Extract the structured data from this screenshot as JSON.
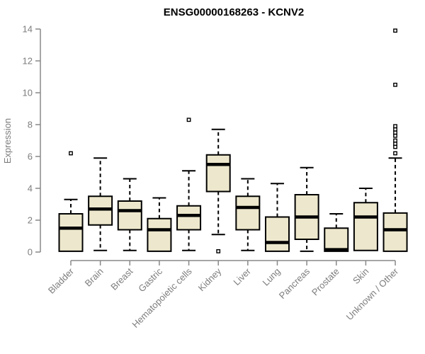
{
  "colors": {
    "box_fill": "#EDE8CD",
    "box_stroke": "#000000",
    "median_color": "#000000",
    "whisker_color": "#000000",
    "outlier_stroke": "#000000",
    "axis_line": "#888888",
    "axis_text": "#7d7d7d",
    "title_color": "#000000",
    "background": "#ffffff"
  },
  "chart_data": {
    "type": "boxplot",
    "title": "ENSG00000168263 - KCNV2",
    "ylabel": "Expression",
    "xlabel": "",
    "ylim": [
      0,
      14
    ],
    "yticks": [
      0,
      2,
      4,
      6,
      8,
      10,
      12,
      14
    ],
    "grid": false,
    "legend": false,
    "outlier_marker": "open-square",
    "whisker_style": "dashed",
    "categories": [
      "Bladder",
      "Brain",
      "Breast",
      "Gastric",
      "Hematopoietic cells",
      "Kidney",
      "Liver",
      "Lung",
      "Pancreas",
      "Prostate",
      "Skin",
      "Unknown / Other"
    ],
    "series": [
      {
        "name": "Bladder",
        "whisker_low": 0.05,
        "q1": 0.05,
        "median": 1.5,
        "q3": 2.4,
        "whisker_high": 3.3,
        "outliers": [
          6.2
        ]
      },
      {
        "name": "Brain",
        "whisker_low": 0.1,
        "q1": 1.7,
        "median": 2.7,
        "q3": 3.5,
        "whisker_high": 5.9,
        "outliers": []
      },
      {
        "name": "Breast",
        "whisker_low": 0.1,
        "q1": 1.4,
        "median": 2.6,
        "q3": 3.2,
        "whisker_high": 4.6,
        "outliers": []
      },
      {
        "name": "Gastric",
        "whisker_low": 0.05,
        "q1": 0.05,
        "median": 1.4,
        "q3": 2.1,
        "whisker_high": 3.4,
        "outliers": []
      },
      {
        "name": "Hematopoietic cells",
        "whisker_low": 0.1,
        "q1": 1.4,
        "median": 2.3,
        "q3": 2.9,
        "whisker_high": 5.1,
        "outliers": [
          8.3
        ]
      },
      {
        "name": "Kidney",
        "whisker_low": 1.1,
        "q1": 3.8,
        "median": 5.5,
        "q3": 6.1,
        "whisker_high": 7.7,
        "outliers": [
          0.05
        ]
      },
      {
        "name": "Liver",
        "whisker_low": 0.1,
        "q1": 1.4,
        "median": 2.8,
        "q3": 3.5,
        "whisker_high": 4.6,
        "outliers": []
      },
      {
        "name": "Lung",
        "whisker_low": 0.05,
        "q1": 0.05,
        "median": 0.6,
        "q3": 2.2,
        "whisker_high": 4.3,
        "outliers": []
      },
      {
        "name": "Pancreas",
        "whisker_low": 0.05,
        "q1": 0.8,
        "median": 2.2,
        "q3": 3.6,
        "whisker_high": 5.3,
        "outliers": []
      },
      {
        "name": "Prostate",
        "whisker_low": 0.05,
        "q1": 0.05,
        "median": 0.15,
        "q3": 1.5,
        "whisker_high": 2.4,
        "outliers": []
      },
      {
        "name": "Skin",
        "whisker_low": 0.1,
        "q1": 0.1,
        "median": 2.2,
        "q3": 3.1,
        "whisker_high": 4.0,
        "outliers": []
      },
      {
        "name": "Unknown / Other",
        "whisker_low": 0.05,
        "q1": 0.05,
        "median": 1.4,
        "q3": 2.45,
        "whisker_high": 5.9,
        "outliers": [
          6.2,
          6.6,
          6.8,
          7.0,
          7.3,
          7.5,
          7.7,
          7.9,
          10.5,
          13.9
        ]
      }
    ]
  }
}
